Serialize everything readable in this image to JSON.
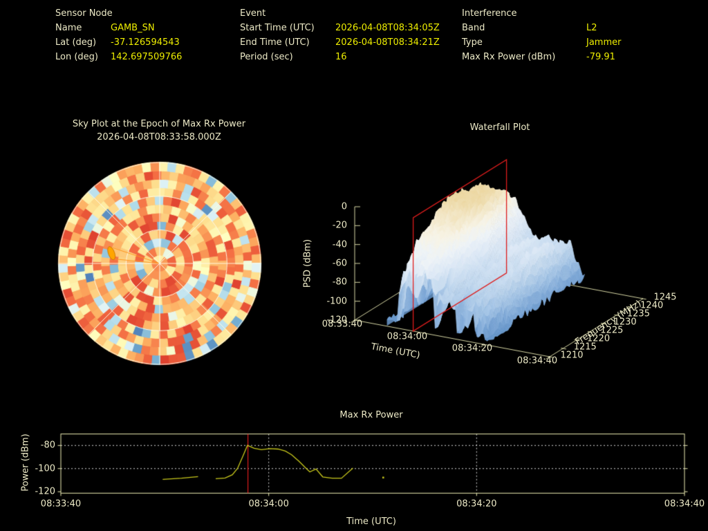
{
  "app": {
    "description": "RF interference sensor event dashboard"
  },
  "colors": {
    "background": "#000000",
    "label_cream": "#ece9c6",
    "value_yellow": "#eded00",
    "frame": "#eeeeb4",
    "wf_axis": "#d6d6a4",
    "sky_grid": "#fffbe6",
    "series_yellow": "#c9c91c",
    "event_red": "#dd1d1d",
    "grid_white": "#ffffff",
    "marker_orange": "#ffa500"
  },
  "header": {
    "columns": [
      {
        "title": "Sensor Node",
        "rows": [
          {
            "key": "Name",
            "value": "GAMB_SN"
          },
          {
            "key": "Lat (deg)",
            "value": "-37.126594543"
          },
          {
            "key": "Lon (deg)",
            "value": "142.697509766"
          }
        ]
      },
      {
        "title": "Event",
        "rows": [
          {
            "key": "Start Time (UTC)",
            "value": "2026-04-08T08:34:05Z"
          },
          {
            "key": "End Time (UTC)",
            "value": "2026-04-08T08:34:21Z"
          },
          {
            "key": "Period (sec)",
            "value": "16"
          }
        ]
      },
      {
        "title": "Interference",
        "rows": [
          {
            "key": "Band",
            "value": "L2"
          },
          {
            "key": "Type",
            "value": "Jammer"
          },
          {
            "key": "Max Rx Power (dBm)",
            "value": "-79.91"
          }
        ]
      }
    ]
  },
  "chart_data": [
    {
      "id": "sky_plot",
      "type": "heatmap",
      "projection": "polar",
      "title": "Sky Plot at the Epoch of Max Rx Power",
      "subtitle": "2026-04-08T08:33:58.000Z",
      "colormap": "RdYlBu",
      "grid": {
        "elevation_circles_deg": [
          0,
          30,
          60
        ],
        "azimuth_spoke_step_deg": 45
      },
      "rings": 12,
      "seed": 7,
      "warm_fraction": 0.78,
      "value_note": "speckled texture: mostly warm (orange/red) cells with scattered cool (blue) cells",
      "marker": {
        "azimuth_deg": 282,
        "elevation_deg": 46,
        "shape": "ellipse",
        "color": "#ffa500",
        "wedge_from_center": true
      }
    },
    {
      "id": "waterfall",
      "type": "heatmap",
      "render": "3d-surface",
      "title": "Waterfall Plot",
      "xlabel": "Time (UTC)",
      "ylabel": "Frequency (MHz)",
      "zlabel": "PSD (dBm)",
      "time_ticks": {
        "seconds": [
          0,
          20,
          40,
          60
        ],
        "labels": [
          "08:33:40",
          "08:34:00",
          "08:34:20",
          "08:34:40"
        ]
      },
      "freq_ticks": [
        1210,
        1215,
        1220,
        1225,
        1230,
        1235,
        1240,
        1245
      ],
      "psd_ticks": [
        0,
        -20,
        -40,
        -60,
        -80,
        -100,
        -120
      ],
      "zlim": [
        -120,
        0
      ],
      "freq_range_mhz": [
        1210,
        1245
      ],
      "time_range": [
        "08:33:40",
        "08:34:40"
      ],
      "highlight_plane": {
        "time": "08:33:58Z",
        "seconds": 18,
        "color": "#dd1d1d"
      },
      "surface": {
        "t_range_sec": [
          10,
          42
        ],
        "peak_psd_dbm": -16,
        "noise_floor_dbm": -114,
        "seed": 11,
        "note": "broad plateau ~-20 dBm from ~08:33:52 to ~08:34:02 across band, decaying spiky tail to ~08:34:22"
      }
    },
    {
      "id": "max_rx_power",
      "type": "line",
      "title": "Max Rx Power",
      "xlabel": "Time (UTC)",
      "ylabel": "Power (dBm)",
      "x_origin": "08:33:40",
      "x_ticks": {
        "seconds": [
          0,
          20,
          40,
          60
        ],
        "labels": [
          "08:33:40",
          "08:34:00",
          "08:34:20",
          "08:34:40"
        ]
      },
      "y_ticks": [
        -80,
        -100,
        -120
      ],
      "ylim": [
        -121.3,
        -70.0
      ],
      "grid": {
        "x_seconds": [
          20,
          40
        ],
        "y_values": [
          -80,
          -100
        ],
        "style": "dotted-white"
      },
      "event_marker": {
        "seconds": 18,
        "label": "08:33:58",
        "color": "#dd1d1d"
      },
      "series": [
        {
          "name": "Max Rx Power",
          "color": "#c9c91c",
          "segments": [
            [
              [
                9.8,
                -109.4
              ],
              [
                11.6,
                -108.3
              ],
              [
                13.2,
                -106.9
              ]
            ],
            [
              [
                14.9,
                -108.8
              ],
              [
                15.8,
                -108.2
              ],
              [
                16.5,
                -105.3
              ],
              [
                17.0,
                -99.8
              ],
              [
                17.55,
                -88.5
              ],
              [
                17.95,
                -79.91
              ],
              [
                18.6,
                -82.4
              ],
              [
                19.3,
                -83.6
              ],
              [
                20.1,
                -82.7
              ],
              [
                20.9,
                -83.1
              ],
              [
                21.6,
                -84.8
              ],
              [
                22.2,
                -88.0
              ],
              [
                22.9,
                -93.6
              ],
              [
                23.5,
                -99.0
              ],
              [
                23.95,
                -102.9
              ],
              [
                24.55,
                -100.4
              ],
              [
                25.2,
                -107.2
              ],
              [
                26.1,
                -108.3
              ],
              [
                27.0,
                -108.3
              ],
              [
                28.1,
                -99.5
              ]
            ]
          ],
          "isolated_points": [
            [
              31.0,
              -107.6
            ]
          ]
        }
      ]
    }
  ]
}
